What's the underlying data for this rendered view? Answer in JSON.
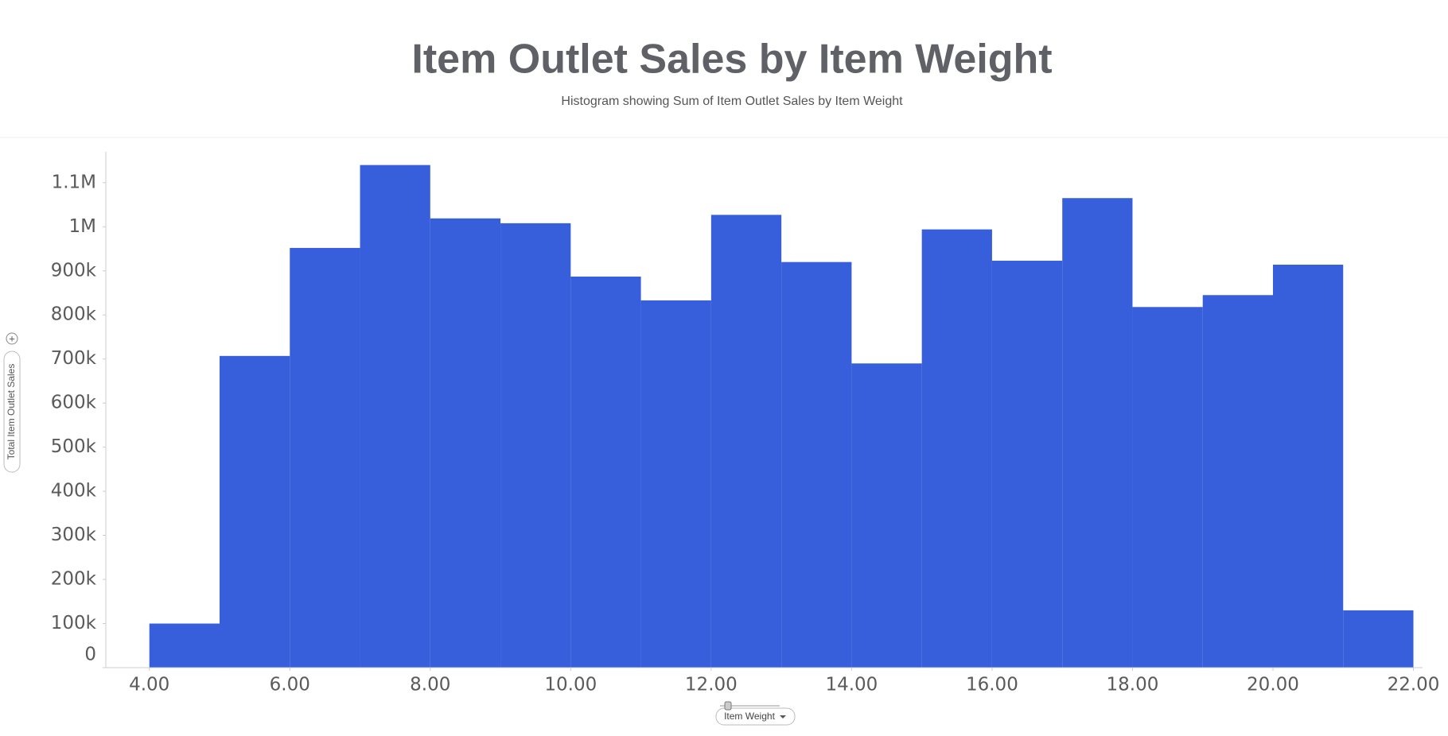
{
  "chart_data": {
    "type": "histogram",
    "title": "Item Outlet Sales by Item Weight",
    "subtitle": "Histogram showing Sum of Item Outlet Sales by Item Weight",
    "x_label": "Item Weight",
    "y_label": "Total Item Outlet Sales",
    "bins": [
      4,
      5,
      6,
      7,
      8,
      9,
      10,
      11,
      12,
      13,
      14,
      15,
      16,
      17,
      18,
      19,
      20,
      21,
      22
    ],
    "values": [
      100000,
      707000,
      952000,
      1140000,
      1019000,
      1008000,
      887000,
      833000,
      1027000,
      920000,
      690000,
      994000,
      923000,
      1065000,
      818000,
      845000,
      914000,
      130000
    ],
    "color": "#385fdb",
    "xlim": [
      3.38,
      22.13
    ],
    "xticks": [
      {
        "value": 4,
        "label": "4.00"
      },
      {
        "value": 6,
        "label": "6.00"
      },
      {
        "value": 8,
        "label": "8.00"
      },
      {
        "value": 10,
        "label": "10.00"
      },
      {
        "value": 12,
        "label": "12.00"
      },
      {
        "value": 14,
        "label": "14.00"
      },
      {
        "value": 16,
        "label": "16.00"
      },
      {
        "value": 18,
        "label": "18.00"
      },
      {
        "value": 20,
        "label": "20.00"
      },
      {
        "value": 22,
        "label": "22.00"
      }
    ],
    "ylim": [
      0,
      1170000
    ],
    "yticks": [
      0,
      {
        "value": 100000,
        "label": "100k"
      },
      {
        "value": 200000,
        "label": "200k"
      },
      {
        "value": 300000,
        "label": "300k"
      },
      {
        "value": 400000,
        "label": "400k"
      },
      {
        "value": 500000,
        "label": "500k"
      },
      {
        "value": 600000,
        "label": "600k"
      },
      {
        "value": 700000,
        "label": "700k"
      },
      {
        "value": 800000,
        "label": "800k"
      },
      {
        "value": 900000,
        "label": "900k"
      },
      {
        "value": 1000000,
        "label": "1M"
      },
      {
        "value": 1100000,
        "label": "1.1M"
      }
    ]
  }
}
